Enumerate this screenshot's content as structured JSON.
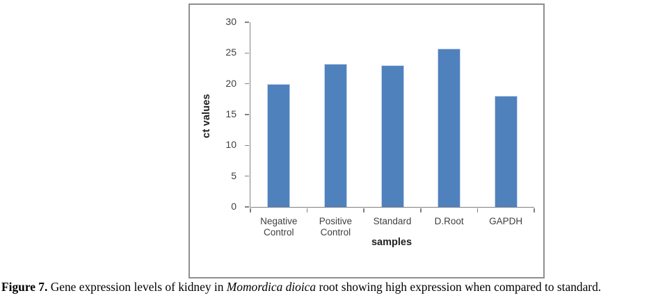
{
  "figure": {
    "caption": {
      "label": "Figure 7.",
      "text_before_italic": " Gene expression levels of kidney in ",
      "italic": "Momordica dioica",
      "text_after_italic": " root showing high expression when compared to standard."
    }
  },
  "chart_data": {
    "type": "bar",
    "title": "",
    "categories": [
      "Negative Control",
      "Positive Control",
      "Standard",
      "D.Root",
      "GAPDH"
    ],
    "values": [
      20,
      23.2,
      23,
      25.7,
      18
    ],
    "xlabel": "samples",
    "ylabel": "ct values",
    "ylim": [
      0,
      30
    ],
    "yticks": [
      0,
      5,
      10,
      15,
      20,
      25,
      30
    ],
    "grid": false,
    "legend": "none",
    "bar_color": "#4f81bd",
    "bar_border_color": "#c6d5ea",
    "axis_color": "#808080",
    "tick_label_color": "#3f3f3f"
  }
}
